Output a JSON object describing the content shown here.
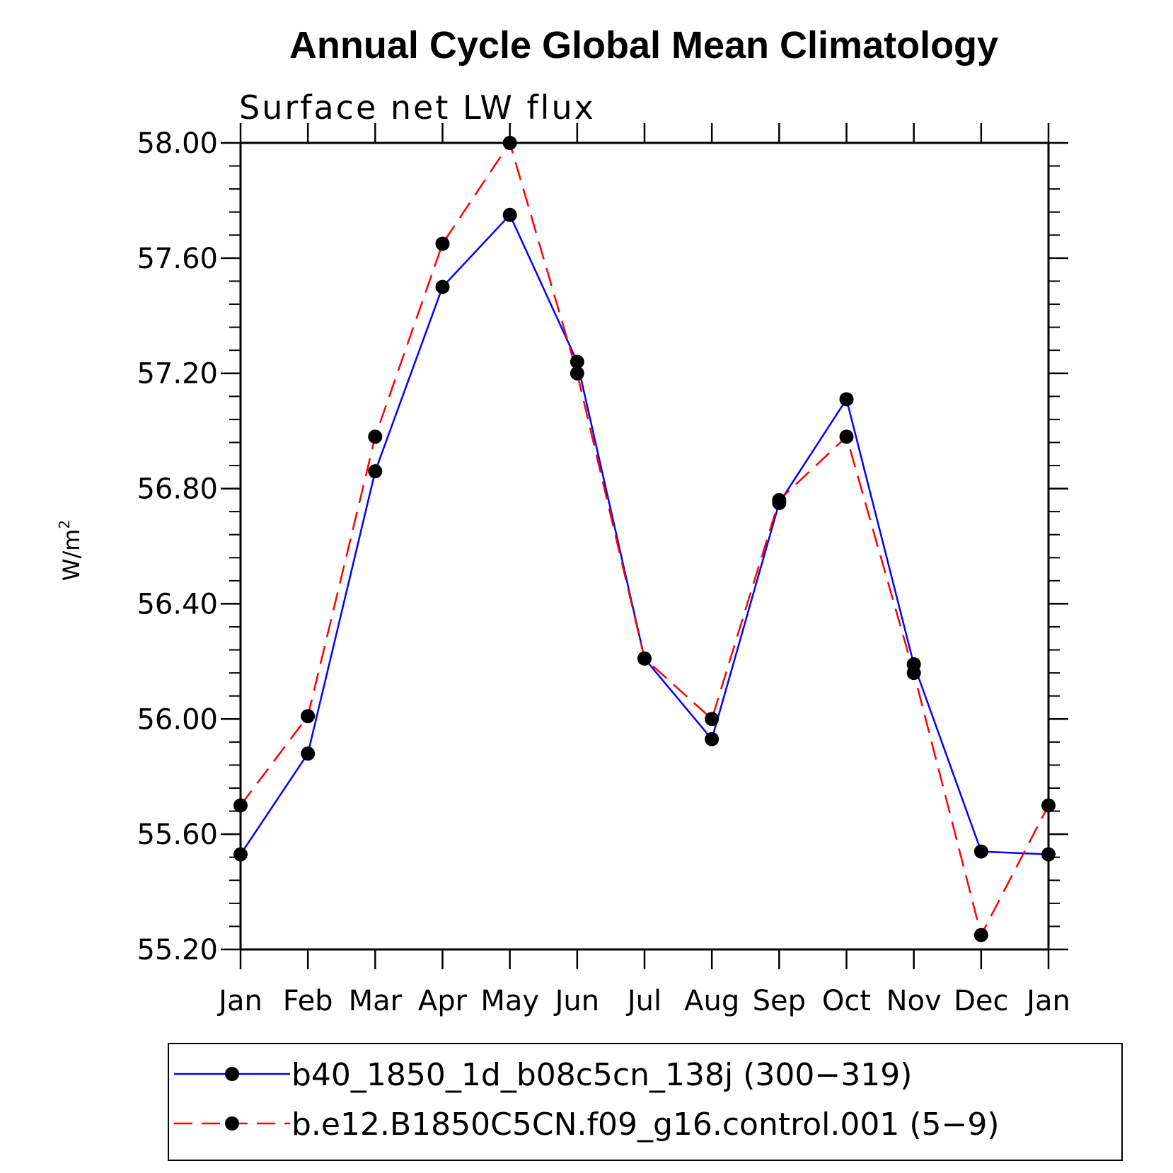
{
  "chart_data": {
    "type": "line",
    "title": "Annual Cycle Global Mean Climatology",
    "subtitle": "Surface net LW flux",
    "ylabel": "W/m",
    "ylabel_sup": "2",
    "xlabel": "",
    "categories": [
      "Jan",
      "Feb",
      "Mar",
      "Apr",
      "May",
      "Jun",
      "Jul",
      "Aug",
      "Sep",
      "Oct",
      "Nov",
      "Dec",
      "Jan"
    ],
    "ylim": [
      55.2,
      58.0
    ],
    "yticks": [
      "55.20",
      "55.60",
      "56.00",
      "56.40",
      "56.80",
      "57.20",
      "57.60",
      "58.00"
    ],
    "grid": false,
    "legend_position": "bottom",
    "series": [
      {
        "name": "b40_1850_1d_b08c5cn_138j (300−319)",
        "color": "#0000ff",
        "style": "solid",
        "values": [
          55.53,
          55.88,
          56.86,
          57.5,
          57.75,
          57.24,
          56.21,
          55.93,
          56.75,
          57.11,
          56.19,
          55.54,
          55.53
        ]
      },
      {
        "name": "b.e12.B1850C5CN.f09_g16.control.001 (5−9)",
        "color": "#ff0000",
        "style": "dashed",
        "values": [
          55.7,
          56.01,
          56.98,
          57.65,
          58.0,
          57.2,
          56.21,
          56.0,
          56.76,
          56.98,
          56.16,
          55.25,
          55.7
        ]
      }
    ]
  }
}
